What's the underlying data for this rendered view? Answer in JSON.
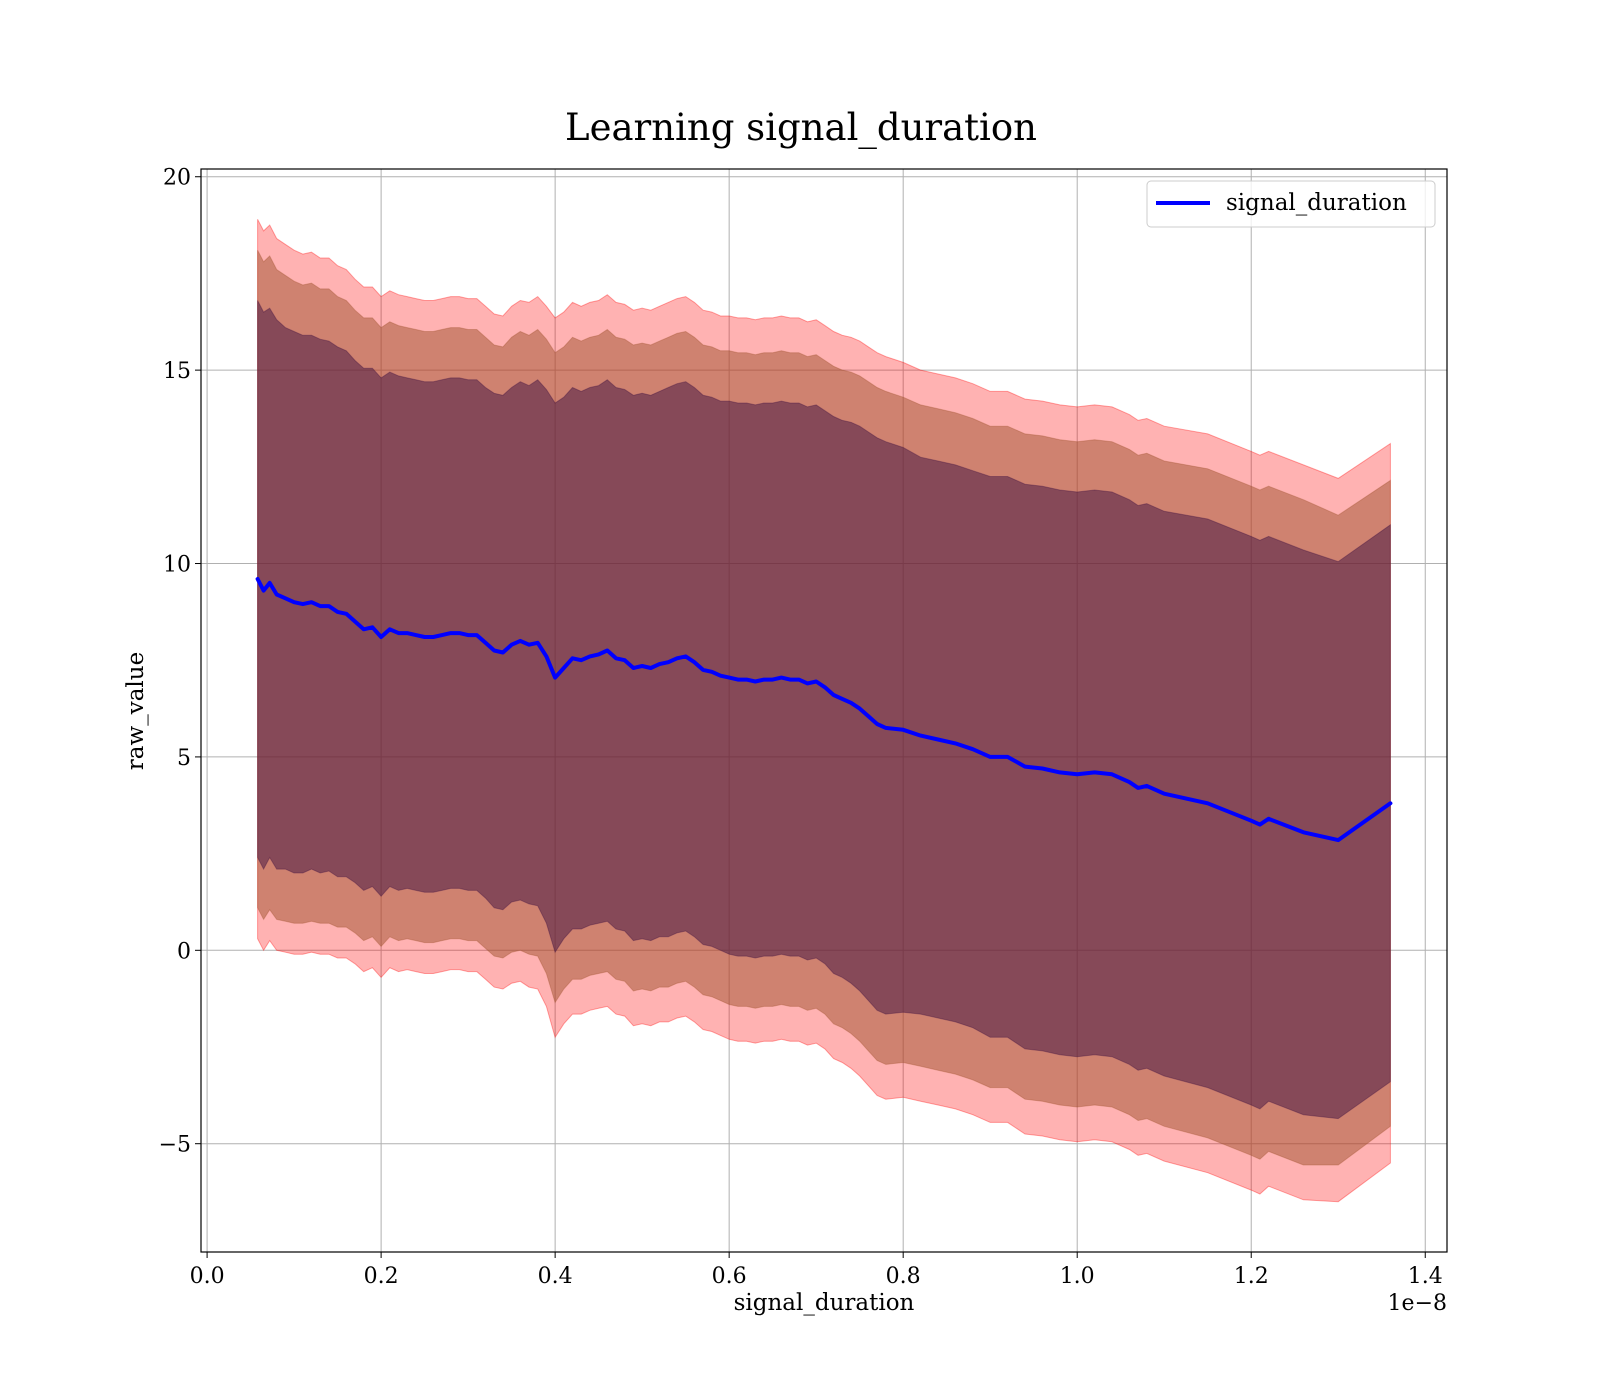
{
  "chart_data": {
    "type": "line",
    "title": "Learning signal_duration",
    "xlabel": "signal_duration",
    "ylabel": "raw_value",
    "x_offset_label": "1e−8",
    "x_scale": 1e-08,
    "xlim": [
      -0.007,
      1.425
    ],
    "ylim": [
      -7.8,
      20.2
    ],
    "x_ticks": [
      0.0,
      0.2,
      0.4,
      0.6,
      0.8,
      1.0,
      1.2,
      1.4
    ],
    "x_tick_labels": [
      "0.0",
      "0.2",
      "0.4",
      "0.6",
      "0.8",
      "1.0",
      "1.2",
      "1.4"
    ],
    "y_ticks": [
      -5,
      0,
      5,
      10,
      15,
      20
    ],
    "y_tick_labels": [
      "−5",
      "0",
      "5",
      "10",
      "15",
      "20"
    ],
    "grid": true,
    "legend": {
      "location": "upper right",
      "entries": [
        "signal_duration"
      ]
    },
    "colors": {
      "line": "#0000ff",
      "band_outer": "#ff0000",
      "band_middle": "#a0522d",
      "band_inner": "#3d0f3f"
    },
    "series": [
      {
        "name": "signal_duration",
        "x": [
          0.058,
          0.065,
          0.072,
          0.08,
          0.09,
          0.1,
          0.11,
          0.12,
          0.13,
          0.14,
          0.15,
          0.16,
          0.17,
          0.18,
          0.19,
          0.2,
          0.21,
          0.22,
          0.23,
          0.24,
          0.25,
          0.26,
          0.27,
          0.28,
          0.29,
          0.3,
          0.31,
          0.32,
          0.33,
          0.34,
          0.35,
          0.36,
          0.37,
          0.38,
          0.39,
          0.4,
          0.41,
          0.42,
          0.43,
          0.44,
          0.45,
          0.46,
          0.47,
          0.48,
          0.49,
          0.5,
          0.51,
          0.52,
          0.53,
          0.54,
          0.55,
          0.56,
          0.57,
          0.58,
          0.59,
          0.6,
          0.61,
          0.62,
          0.63,
          0.64,
          0.65,
          0.66,
          0.67,
          0.68,
          0.69,
          0.7,
          0.71,
          0.72,
          0.73,
          0.74,
          0.75,
          0.76,
          0.77,
          0.78,
          0.8,
          0.82,
          0.84,
          0.86,
          0.88,
          0.9,
          0.92,
          0.94,
          0.96,
          0.98,
          1.0,
          1.02,
          1.04,
          1.06,
          1.07,
          1.08,
          1.1,
          1.15,
          1.2,
          1.21,
          1.22,
          1.26,
          1.3,
          1.36
        ],
        "y": [
          9.6,
          9.3,
          9.5,
          9.2,
          9.1,
          9.0,
          8.95,
          9.0,
          8.9,
          8.9,
          8.75,
          8.7,
          8.5,
          8.3,
          8.35,
          8.1,
          8.3,
          8.2,
          8.2,
          8.15,
          8.1,
          8.1,
          8.15,
          8.2,
          8.2,
          8.15,
          8.15,
          7.95,
          7.75,
          7.7,
          7.9,
          8.0,
          7.9,
          7.95,
          7.6,
          7.05,
          7.3,
          7.55,
          7.5,
          7.6,
          7.65,
          7.75,
          7.55,
          7.5,
          7.3,
          7.35,
          7.3,
          7.4,
          7.45,
          7.55,
          7.6,
          7.45,
          7.25,
          7.2,
          7.1,
          7.05,
          7.0,
          7.0,
          6.95,
          7.0,
          7.0,
          7.05,
          7.0,
          7.0,
          6.9,
          6.95,
          6.8,
          6.6,
          6.5,
          6.4,
          6.25,
          6.05,
          5.85,
          5.75,
          5.7,
          5.55,
          5.45,
          5.35,
          5.2,
          5.0,
          5.0,
          4.75,
          4.7,
          4.6,
          4.55,
          4.6,
          4.55,
          4.35,
          4.2,
          4.25,
          4.05,
          3.8,
          3.35,
          3.25,
          3.4,
          3.05,
          2.85,
          3.8
        ],
        "band_inner_half_width": [
          7.2,
          7.2,
          7.1,
          7.1,
          7.0,
          7.0,
          6.95,
          6.9,
          6.9,
          6.85,
          6.85,
          6.8,
          6.75,
          6.75,
          6.7,
          6.7,
          6.65,
          6.65,
          6.6,
          6.6,
          6.6,
          6.6,
          6.6,
          6.6,
          6.6,
          6.6,
          6.6,
          6.6,
          6.65,
          6.65,
          6.65,
          6.7,
          6.7,
          6.8,
          6.9,
          7.1,
          7.0,
          7.0,
          6.95,
          6.95,
          6.95,
          7.0,
          7.0,
          7.0,
          7.05,
          7.05,
          7.05,
          7.05,
          7.1,
          7.1,
          7.1,
          7.1,
          7.1,
          7.1,
          7.1,
          7.15,
          7.15,
          7.15,
          7.15,
          7.15,
          7.15,
          7.15,
          7.15,
          7.15,
          7.15,
          7.15,
          7.15,
          7.2,
          7.2,
          7.25,
          7.3,
          7.35,
          7.4,
          7.4,
          7.3,
          7.2,
          7.2,
          7.2,
          7.2,
          7.25,
          7.25,
          7.3,
          7.3,
          7.3,
          7.3,
          7.3,
          7.3,
          7.3,
          7.3,
          7.3,
          7.3,
          7.35,
          7.35,
          7.35,
          7.3,
          7.3,
          7.2,
          7.2
        ],
        "band_middle_half_width": [
          8.5,
          8.5,
          8.45,
          8.4,
          8.35,
          8.3,
          8.25,
          8.25,
          8.2,
          8.2,
          8.15,
          8.1,
          8.05,
          8.05,
          8.0,
          8.0,
          7.95,
          7.95,
          7.9,
          7.9,
          7.9,
          7.9,
          7.9,
          7.9,
          7.9,
          7.9,
          7.9,
          7.9,
          7.9,
          7.9,
          7.95,
          8.0,
          8.0,
          8.1,
          8.2,
          8.4,
          8.3,
          8.3,
          8.25,
          8.25,
          8.25,
          8.3,
          8.3,
          8.3,
          8.35,
          8.35,
          8.35,
          8.35,
          8.4,
          8.4,
          8.4,
          8.4,
          8.4,
          8.4,
          8.4,
          8.45,
          8.45,
          8.45,
          8.45,
          8.45,
          8.45,
          8.45,
          8.45,
          8.45,
          8.45,
          8.45,
          8.45,
          8.5,
          8.5,
          8.55,
          8.6,
          8.65,
          8.7,
          8.7,
          8.6,
          8.55,
          8.55,
          8.55,
          8.55,
          8.55,
          8.55,
          8.6,
          8.6,
          8.6,
          8.6,
          8.6,
          8.6,
          8.6,
          8.6,
          8.6,
          8.6,
          8.65,
          8.65,
          8.65,
          8.6,
          8.6,
          8.4,
          8.35
        ],
        "band_outer_half_width": [
          9.3,
          9.3,
          9.25,
          9.2,
          9.15,
          9.1,
          9.05,
          9.05,
          9.0,
          9.0,
          8.95,
          8.9,
          8.85,
          8.85,
          8.8,
          8.8,
          8.75,
          8.75,
          8.7,
          8.7,
          8.7,
          8.7,
          8.7,
          8.7,
          8.7,
          8.7,
          8.7,
          8.7,
          8.7,
          8.7,
          8.75,
          8.8,
          8.85,
          8.95,
          9.05,
          9.3,
          9.2,
          9.2,
          9.15,
          9.15,
          9.15,
          9.2,
          9.2,
          9.2,
          9.25,
          9.25,
          9.25,
          9.25,
          9.3,
          9.3,
          9.3,
          9.3,
          9.3,
          9.3,
          9.3,
          9.35,
          9.35,
          9.35,
          9.35,
          9.35,
          9.35,
          9.35,
          9.35,
          9.35,
          9.35,
          9.35,
          9.35,
          9.4,
          9.4,
          9.45,
          9.5,
          9.55,
          9.6,
          9.6,
          9.5,
          9.45,
          9.45,
          9.45,
          9.45,
          9.45,
          9.45,
          9.5,
          9.5,
          9.5,
          9.5,
          9.5,
          9.5,
          9.5,
          9.5,
          9.5,
          9.5,
          9.55,
          9.55,
          9.55,
          9.5,
          9.5,
          9.35,
          9.3
        ]
      }
    ]
  }
}
